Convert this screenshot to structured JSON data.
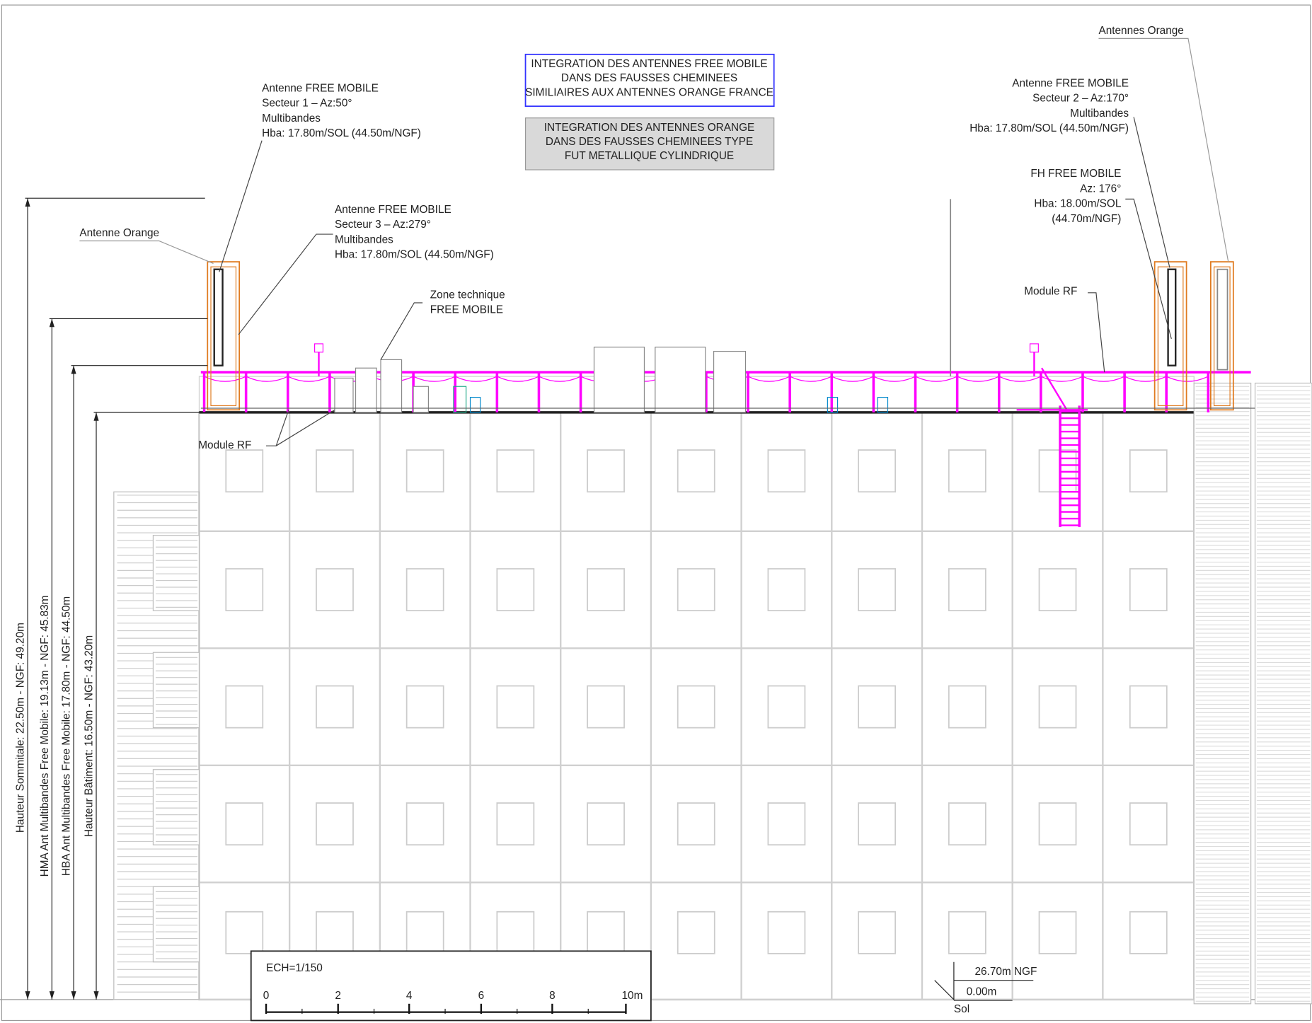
{
  "free_box": {
    "lines": [
      "INTEGRATION DES ANTENNES FREE MOBILE",
      "DANS DES FAUSSES CHEMINEES",
      "SIMILIAIRES AUX ANTENNES ORANGE FRANCE"
    ]
  },
  "orange_box": {
    "lines": [
      "INTEGRATION DES ANTENNES ORANGE",
      "DANS DES FAUSSES CHEMINEES TYPE",
      "FUT METALLIQUE CYLINDRIQUE"
    ]
  },
  "annotations": {
    "sector1": [
      "Antenne FREE MOBILE",
      "Secteur 1 – Az:50°",
      "Multibandes",
      "Hba: 17.80m/SOL (44.50m/NGF)"
    ],
    "sector3": [
      "Antenne FREE MOBILE",
      "Secteur 3 – Az:279°",
      "Multibandes",
      "Hba: 17.80m/SOL (44.50m/NGF)"
    ],
    "sector2": [
      "Antenne FREE MOBILE",
      "Secteur 2 – Az:170°",
      "Multibandes",
      "Hba: 17.80m/SOL (44.50m/NGF)"
    ],
    "fh": [
      "FH FREE MOBILE",
      "Az: 176°",
      "Hba: 18.00m/SOL",
      "(44.70m/NGF)"
    ],
    "antenne_orange_left": "Antenne Orange",
    "antennes_orange_right": "Antennes Orange",
    "zone_technique": [
      "Zone technique",
      "FREE MOBILE"
    ],
    "module_rf_left": "Module RF",
    "module_rf_right": "Module RF"
  },
  "dimensions": [
    "Hauteur Sommitale: 22.50m - NGF: 49.20m",
    "HMA Ant Multibandes Free Mobile: 19.13m - NGF: 45.83m",
    "HBA Ant Multibandes Free Mobile: 17.80m - NGF: 44.50m",
    "Hauteur Bâtiment: 16.50m - NGF: 43.20m"
  ],
  "scale": {
    "title": "ECH=1/150",
    "labels": [
      "0",
      "2",
      "4",
      "6",
      "8",
      "10m"
    ]
  },
  "level": {
    "ngf": "26.70m  NGF",
    "sol_value": "0.00m",
    "sol": "Sol"
  }
}
